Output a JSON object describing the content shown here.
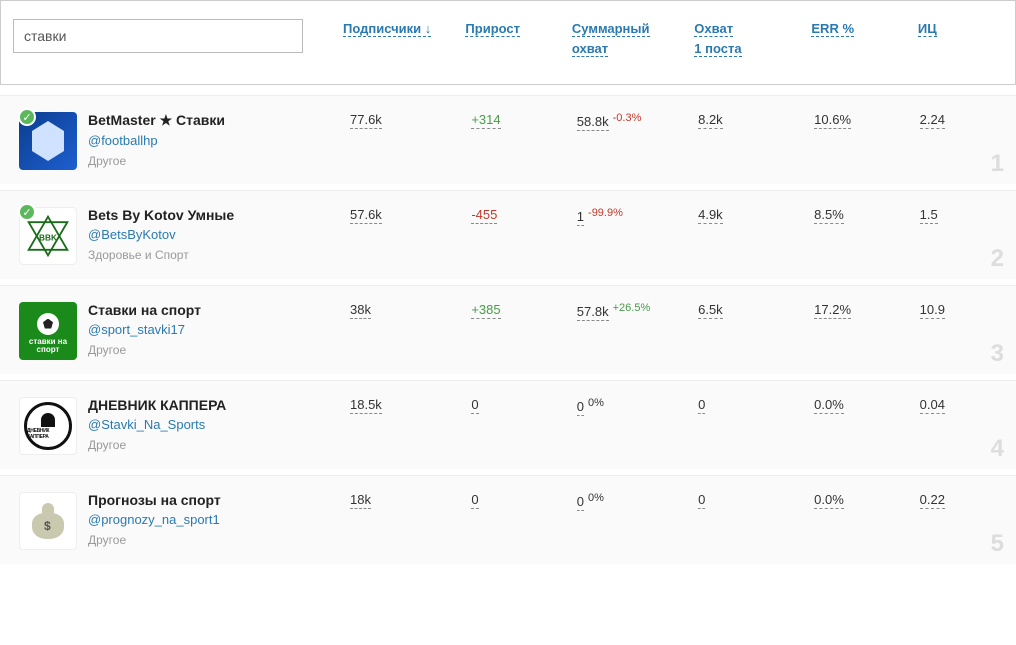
{
  "search": {
    "value": "ставки"
  },
  "columns": {
    "subscribers": "Подписчики",
    "subscribers_arrow": "↓",
    "growth": "Прирост",
    "total_reach_l1": "Суммарный",
    "total_reach_l2": "охват",
    "reach1_l1": "Охват",
    "reach1_l2": "1 поста",
    "err": "ERR %",
    "ic": "ИЦ"
  },
  "rows": [
    {
      "rank": "1",
      "title": "BetMaster ★ Ставки",
      "handle": "@footballhp",
      "category": "Другое",
      "verified": true,
      "subscribers": "77.6k",
      "growth": "+314",
      "growth_class": "growth-pos",
      "total_reach": "58.8k",
      "delta": "-0.3%",
      "delta_class": "neg",
      "reach1": "8.2k",
      "err": "10.6%",
      "ic": "2.24"
    },
    {
      "rank": "2",
      "title": "Bets By Kotov Умные",
      "handle": "@BetsByKotov",
      "category": "Здоровье и Спорт",
      "verified": true,
      "subscribers": "57.6k",
      "growth": "-455",
      "growth_class": "growth-neg",
      "total_reach": "1",
      "delta": "-99.9%",
      "delta_class": "neg",
      "reach1": "4.9k",
      "err": "8.5%",
      "ic": "1.5"
    },
    {
      "rank": "3",
      "title": "Ставки на спорт",
      "handle": "@sport_stavki17",
      "category": "Другое",
      "verified": false,
      "subscribers": "38k",
      "growth": "+385",
      "growth_class": "growth-pos",
      "total_reach": "57.8k",
      "delta": "+26.5%",
      "delta_class": "pos",
      "reach1": "6.5k",
      "err": "17.2%",
      "ic": "10.9"
    },
    {
      "rank": "4",
      "title": "ДНЕВНИК КАППЕРА",
      "handle": "@Stavki_Na_Sports",
      "category": "Другое",
      "verified": false,
      "subscribers": "18.5k",
      "growth": "0",
      "growth_class": "",
      "total_reach": "0",
      "delta": "0%",
      "delta_class": "",
      "reach1": "0",
      "err": "0.0%",
      "ic": "0.04"
    },
    {
      "rank": "5",
      "title": "Прогнозы на спорт",
      "handle": "@prognozy_na_sport1",
      "category": "Другое",
      "verified": false,
      "subscribers": "18k",
      "growth": "0",
      "growth_class": "",
      "total_reach": "0",
      "delta": "0%",
      "delta_class": "",
      "reach1": "0",
      "err": "0.0%",
      "ic": "0.22"
    }
  ],
  "avatar_text": {
    "row3_l1": "ставки на",
    "row3_l2": "спорт",
    "row4": "ДНЕВНИК КАППЕРА"
  }
}
